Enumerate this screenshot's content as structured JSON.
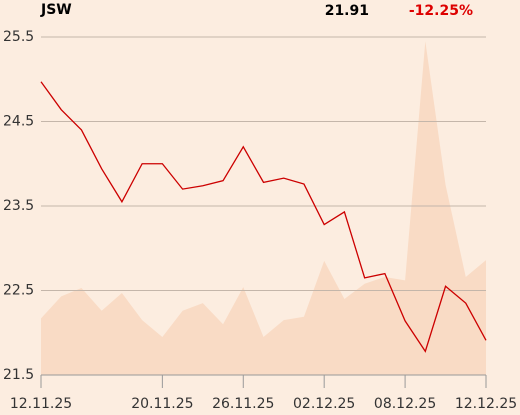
{
  "chart_data": {
    "type": "line",
    "title": "JSW",
    "price": 21.91,
    "change": "-12.25%",
    "categories": [
      "12.11.25",
      null,
      null,
      null,
      null,
      null,
      "20.11.25",
      null,
      null,
      null,
      "26.11.25",
      null,
      null,
      null,
      "02.12.25",
      null,
      null,
      null,
      "08.12.25",
      null,
      null,
      null,
      "12.12.25"
    ],
    "series": [
      {
        "type": "line",
        "color": "#cc0000",
        "values": [
          24.97,
          24.64,
          24.4,
          23.94,
          23.55,
          24.0,
          24.0,
          23.7,
          23.74,
          23.8,
          24.2,
          23.78,
          23.83,
          23.76,
          23.28,
          23.43,
          22.65,
          22.7,
          22.14,
          21.78,
          22.55,
          22.35,
          21.91
        ]
      },
      {
        "type": "area",
        "color": "#f9dbc5",
        "values": [
          22.17,
          22.43,
          22.53,
          22.26,
          22.47,
          22.15,
          21.95,
          22.26,
          22.35,
          22.1,
          22.54,
          21.95,
          22.15,
          22.19,
          22.85,
          22.4,
          22.58,
          22.66,
          22.62,
          25.45,
          23.75,
          22.66,
          22.86
        ]
      }
    ],
    "ylim": [
      21.5,
      25.5
    ],
    "yticks": [
      21.5,
      22.5,
      23.5,
      24.5,
      25.5
    ],
    "grid": true
  }
}
